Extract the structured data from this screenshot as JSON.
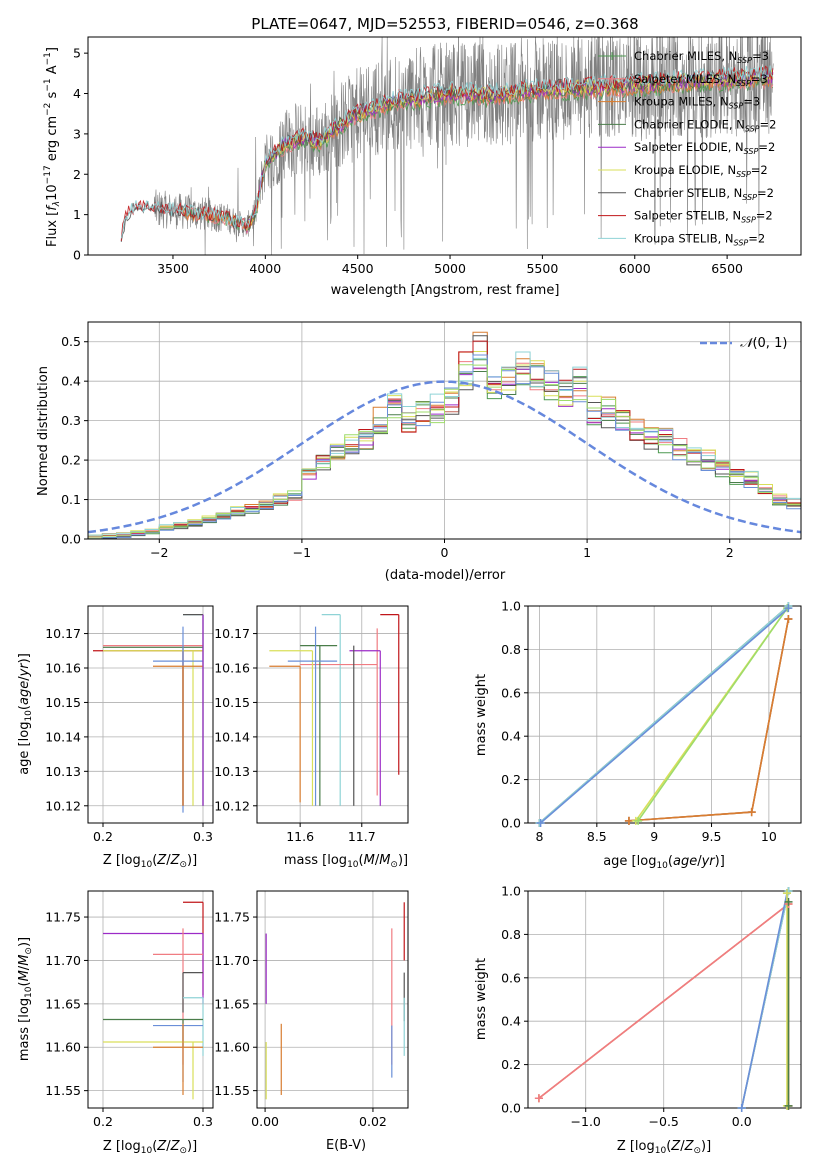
{
  "colors": {
    "Chabrier MILES": "#4d9950",
    "Salpeter MILES": "#f07c82",
    "Kroupa MILES": "#d87d30",
    "Chabrier ELODIE": "#4a7d4a",
    "Salpeter ELODIE": "#9c2bc7",
    "Kroupa ELODIE": "#d9df5a",
    "Chabrier STELIB": "#555555",
    "Salpeter STELIB": "#c0161a",
    "Kroupa STELIB": "#8fd3d6",
    "extra_blue": "#6a8fd8",
    "extra_green": "#9edc6b",
    "data_gray": "#808080",
    "normal_curve": "#6688dd"
  },
  "chart_data": [
    {
      "id": "spectrum",
      "type": "line",
      "title": "PLATE=0647, MJD=52553, FIBERID=0546, z=0.368",
      "xlabel": "wavelength [Angstrom, rest frame]",
      "ylabel": "Flux [f_λ 10^-17 erg cm^-2 s^-1 A^-1]",
      "xlim": [
        3040,
        6900
      ],
      "ylim": [
        0,
        5.4
      ],
      "xticks": [
        3500,
        4000,
        4500,
        5000,
        5500,
        6000,
        6500
      ],
      "yticks": [
        0,
        1,
        2,
        3,
        4,
        5
      ],
      "legend_position": "top-right",
      "legend": [
        "Chabrier MILES, N_SSP=3",
        "Salpeter MILES, N_SSP=3",
        "Kroupa MILES, N_SSP=3",
        "Chabrier ELODIE, N_SSP=2",
        "Salpeter ELODIE, N_SSP=2",
        "Kroupa ELODIE, N_SSP=2",
        "Chabrier STELIB, N_SSP=2",
        "Salpeter STELIB, N_SSP=2",
        "Kroupa STELIB, N_SSP=2"
      ],
      "data_range": [
        3220,
        6750
      ],
      "continuum_knots": {
        "x": [
          3220,
          3250,
          3300,
          3400,
          3500,
          3600,
          3700,
          3800,
          3900,
          3950,
          4000,
          4100,
          4200,
          4300,
          4400,
          4500,
          4700,
          5000,
          5200,
          5500,
          5800,
          6000,
          6300,
          6700
        ],
        "y": [
          0.45,
          1.0,
          1.15,
          1.15,
          1.1,
          1.05,
          1.0,
          0.9,
          0.7,
          1.1,
          2.3,
          2.7,
          2.9,
          2.8,
          3.2,
          3.5,
          3.8,
          4.0,
          3.95,
          4.1,
          4.15,
          4.2,
          4.3,
          4.4
        ]
      }
    },
    {
      "id": "residuals",
      "type": "line",
      "xlabel": "(data-model)/error",
      "ylabel": "Normed distribution",
      "xlim": [
        -2.5,
        2.5
      ],
      "ylim": [
        0,
        0.55
      ],
      "xticks": [
        -2,
        -1,
        0,
        1,
        2
      ],
      "yticks": [
        0.0,
        0.1,
        0.2,
        0.3,
        0.4,
        0.5
      ],
      "legend": [
        "𝒩(0,1)"
      ],
      "legend_position": "top-right",
      "bin_edges": [
        -2.5,
        -2.4,
        -2.3,
        -2.2,
        -2.1,
        -2.0,
        -1.9,
        -1.8,
        -1.7,
        -1.6,
        -1.5,
        -1.4,
        -1.3,
        -1.2,
        -1.1,
        -1.0,
        -0.9,
        -0.8,
        -0.7,
        -0.6,
        -0.5,
        -0.4,
        -0.3,
        -0.2,
        -0.1,
        0.0,
        0.1,
        0.2,
        0.3,
        0.4,
        0.5,
        0.6,
        0.7,
        0.8,
        0.9,
        1.0,
        1.1,
        1.2,
        1.3,
        1.4,
        1.5,
        1.6,
        1.7,
        1.8,
        1.9,
        2.0,
        2.1,
        2.2,
        2.3,
        2.4,
        2.5
      ],
      "base_hist": [
        0.005,
        0.008,
        0.01,
        0.015,
        0.02,
        0.03,
        0.035,
        0.04,
        0.05,
        0.06,
        0.07,
        0.075,
        0.085,
        0.1,
        0.11,
        0.17,
        0.2,
        0.22,
        0.24,
        0.25,
        0.3,
        0.33,
        0.3,
        0.32,
        0.33,
        0.35,
        0.43,
        0.47,
        0.4,
        0.4,
        0.44,
        0.42,
        0.4,
        0.37,
        0.39,
        0.33,
        0.32,
        0.3,
        0.27,
        0.26,
        0.25,
        0.23,
        0.21,
        0.2,
        0.18,
        0.16,
        0.15,
        0.12,
        0.1,
        0.09
      ]
    },
    {
      "id": "age_vs_Z",
      "type": "scatter",
      "xlabel": "Z [log10(Z/Z⊙)]",
      "ylabel": "age [log10(age/yr)]",
      "xlim": [
        0.185,
        0.31
      ],
      "ylim": [
        10.115,
        10.178
      ],
      "xticks": [
        0.2,
        0.3
      ],
      "yticks": [
        10.12,
        10.13,
        10.14,
        10.15,
        10.16,
        10.17
      ],
      "points": [
        {
          "model": "Kroupa STELIB",
          "x": 0.3,
          "y": 10.1755,
          "xerr": [
            0.28,
            0.3
          ],
          "yerr": [
            10.12,
            10.1755
          ]
        },
        {
          "model": "Salpeter MILES",
          "x": 0.28,
          "y": 10.1665,
          "xerr": [
            0.2,
            0.3
          ],
          "yerr": [
            10.12,
            10.1665
          ]
        },
        {
          "model": "Chabrier ELODIE",
          "x": 0.28,
          "y": 10.166,
          "xerr": [
            0.2,
            0.3
          ],
          "yerr": [
            10.12,
            10.166
          ]
        },
        {
          "model": "Salpeter STELIB",
          "x": 0.28,
          "y": 10.165,
          "xerr": [
            0.19,
            0.3
          ],
          "yerr": [
            10.12,
            10.165
          ]
        },
        {
          "model": "Kroupa ELODIE",
          "x": 0.29,
          "y": 10.165,
          "xerr": [
            0.2,
            0.3
          ],
          "yerr": [
            10.12,
            10.165
          ]
        },
        {
          "model": "Chabrier STELIB",
          "x": 0.3,
          "y": 10.1755,
          "xerr": [
            0.28,
            0.3
          ],
          "yerr": [
            10.12,
            10.1755
          ]
        },
        {
          "model": "extra_blue",
          "x": 0.28,
          "y": 10.162,
          "xerr": [
            0.25,
            0.3
          ],
          "yerr": [
            10.118,
            10.172
          ]
        },
        {
          "model": "Kroupa MILES",
          "x": 0.28,
          "y": 10.1605,
          "xerr": [
            0.25,
            0.3
          ],
          "yerr": [
            10.12,
            10.1605
          ]
        },
        {
          "model": "Salpeter ELODIE",
          "x": 0.3,
          "y": 10.12,
          "xerr": [
            0.3,
            0.3
          ],
          "yerr": [
            10.12,
            10.1755
          ]
        }
      ]
    },
    {
      "id": "age_vs_mass",
      "type": "scatter",
      "xlabel": "mass [log10(M/M⊙)]",
      "ylabel": "",
      "xlim": [
        11.53,
        11.775
      ],
      "ylim": [
        10.115,
        10.178
      ],
      "xticks": [
        11.6,
        11.7
      ],
      "yticks": [
        10.12,
        10.13,
        10.14,
        10.15,
        10.16,
        10.17
      ],
      "points": [
        {
          "model": "Salpeter STELIB",
          "x": 11.76,
          "y": 10.1755,
          "xerr": [
            11.73,
            11.76
          ],
          "yerr": [
            10.129,
            10.1755
          ]
        },
        {
          "model": "Kroupa STELIB",
          "x": 11.665,
          "y": 10.1755,
          "xerr": [
            11.635,
            11.665
          ],
          "yerr": [
            10.12,
            10.1755
          ]
        },
        {
          "model": "Salpeter MILES",
          "x": 11.725,
          "y": 10.161,
          "xerr": [
            11.6,
            11.725
          ],
          "yerr": [
            10.123,
            10.1715
          ]
        },
        {
          "model": "Chabrier ELODIE",
          "x": 11.632,
          "y": 10.1665,
          "xerr": [
            11.6,
            11.66
          ],
          "yerr": [
            10.12,
            10.1665
          ]
        },
        {
          "model": "Salpeter ELODIE",
          "x": 11.73,
          "y": 10.165,
          "xerr": [
            11.68,
            11.73
          ],
          "yerr": [
            10.12,
            10.165
          ]
        },
        {
          "model": "Kroupa ELODIE",
          "x": 11.62,
          "y": 10.165,
          "xerr": [
            11.55,
            11.62
          ],
          "yerr": [
            10.12,
            10.165
          ]
        },
        {
          "model": "extra_blue",
          "x": 11.625,
          "y": 10.162,
          "xerr": [
            11.58,
            11.66
          ],
          "yerr": [
            10.12,
            10.172
          ]
        },
        {
          "model": "Kroupa MILES",
          "x": 11.6,
          "y": 10.1605,
          "xerr": [
            11.55,
            11.6
          ],
          "yerr": [
            10.121,
            10.1605
          ]
        },
        {
          "model": "Chabrier STELIB",
          "x": 11.687,
          "y": 10.1665,
          "xerr": [
            11.687,
            11.687
          ],
          "yerr": [
            10.12,
            10.1665
          ]
        }
      ]
    },
    {
      "id": "weight_vs_age",
      "type": "line",
      "xlabel": "age [log10(age/yr)]",
      "ylabel": "mass weight",
      "xlim": [
        7.9,
        10.28
      ],
      "ylim": [
        0,
        1.0
      ],
      "xticks": [
        8.0,
        8.5,
        9.0,
        9.5,
        10.0
      ],
      "yticks": [
        0.0,
        0.2,
        0.4,
        0.6,
        0.8,
        1.0
      ],
      "series": [
        {
          "model": "Chabrier MILES",
          "x": [
            8.78,
            9.85,
            10.17
          ],
          "y": [
            0.01,
            0.05,
            0.94
          ]
        },
        {
          "model": "Salpeter MILES",
          "x": [
            8.78,
            9.85,
            10.17
          ],
          "y": [
            0.01,
            0.05,
            0.94
          ]
        },
        {
          "model": "Kroupa MILES",
          "x": [
            8.78,
            9.85,
            10.17
          ],
          "y": [
            0.01,
            0.05,
            0.94
          ]
        },
        {
          "model": "Kroupa ELODIE",
          "x": [
            8.84,
            10.16
          ],
          "y": [
            0.01,
            0.99
          ]
        },
        {
          "model": "extra_green",
          "x": [
            8.86,
            10.16
          ],
          "y": [
            0.01,
            0.99
          ]
        },
        {
          "model": "Chabrier STELIB",
          "x": [
            8.0,
            10.17
          ],
          "y": [
            0.0,
            1.0
          ]
        },
        {
          "model": "Kroupa STELIB",
          "x": [
            8.0,
            10.17
          ],
          "y": [
            0.0,
            1.0
          ]
        },
        {
          "model": "extra_blue",
          "x": [
            8.01,
            10.17
          ],
          "y": [
            0.0,
            0.99
          ]
        }
      ]
    },
    {
      "id": "mass_vs_Z",
      "type": "scatter",
      "xlabel": "Z [log10(Z/Z⊙)]",
      "ylabel": "mass [log10(M/M⊙)]",
      "xlim": [
        0.185,
        0.31
      ],
      "ylim": [
        11.53,
        11.78
      ],
      "xticks": [
        0.2,
        0.3
      ],
      "yticks": [
        11.55,
        11.6,
        11.65,
        11.7,
        11.75
      ],
      "points": [
        {
          "model": "Salpeter STELIB",
          "x": 0.3,
          "y": 11.767,
          "xerr": [
            0.28,
            0.3
          ],
          "yerr": [
            11.66,
            11.767
          ]
        },
        {
          "model": "Salpeter ELODIE",
          "x": 0.3,
          "y": 11.731,
          "xerr": [
            0.2,
            0.3
          ],
          "yerr": [
            11.65,
            11.731
          ]
        },
        {
          "model": "Salpeter MILES",
          "x": 0.28,
          "y": 11.707,
          "xerr": [
            0.25,
            0.3
          ],
          "yerr": [
            11.58,
            11.737
          ]
        },
        {
          "model": "Chabrier STELIB",
          "x": 0.28,
          "y": 11.686,
          "xerr": [
            0.28,
            0.3
          ],
          "yerr": [
            11.64,
            11.686
          ]
        },
        {
          "model": "Kroupa STELIB",
          "x": 0.3,
          "y": 11.657,
          "xerr": [
            0.28,
            0.3
          ],
          "yerr": [
            11.59,
            11.657
          ]
        },
        {
          "model": "Chabrier ELODIE",
          "x": 0.28,
          "y": 11.632,
          "xerr": [
            0.2,
            0.3
          ],
          "yerr": [
            11.6,
            11.632
          ]
        },
        {
          "model": "extra_blue",
          "x": 0.28,
          "y": 11.625,
          "xerr": [
            0.25,
            0.3
          ],
          "yerr": [
            11.56,
            11.625
          ]
        },
        {
          "model": "Kroupa ELODIE",
          "x": 0.29,
          "y": 11.606,
          "xerr": [
            0.2,
            0.3
          ],
          "yerr": [
            11.54,
            11.606
          ]
        },
        {
          "model": "Kroupa MILES",
          "x": 0.28,
          "y": 11.6,
          "xerr": [
            0.25,
            0.3
          ],
          "yerr": [
            11.545,
            11.627
          ]
        }
      ]
    },
    {
      "id": "mass_vs_EBV",
      "type": "scatter",
      "xlabel": "E(B-V)",
      "ylabel": "",
      "xlim": [
        -0.0015,
        0.0265
      ],
      "ylim": [
        11.53,
        11.78
      ],
      "xticks": [
        0.0,
        0.02
      ],
      "xticklabels": [
        "0.00",
        "0.02"
      ],
      "yticks": [
        11.55,
        11.6,
        11.65,
        11.7,
        11.75
      ],
      "points": [
        {
          "model": "Salpeter STELIB",
          "x": 0.0258,
          "yerr": [
            11.7,
            11.767
          ]
        },
        {
          "model": "Chabrier STELIB",
          "x": 0.0258,
          "yerr": [
            11.63,
            11.686
          ]
        },
        {
          "model": "Kroupa STELIB",
          "x": 0.0258,
          "yerr": [
            11.59,
            11.657
          ]
        },
        {
          "model": "Salpeter MILES",
          "x": 0.0235,
          "yerr": [
            11.58,
            11.737
          ]
        },
        {
          "model": "extra_blue",
          "x": 0.0235,
          "yerr": [
            11.565,
            11.625
          ]
        },
        {
          "model": "Salpeter ELODIE",
          "x": 0.0002,
          "yerr": [
            11.65,
            11.731
          ]
        },
        {
          "model": "Kroupa ELODIE",
          "x": 0.0002,
          "yerr": [
            11.54,
            11.606
          ]
        },
        {
          "model": "Kroupa MILES",
          "x": 0.003,
          "yerr": [
            11.545,
            11.627
          ]
        }
      ]
    },
    {
      "id": "weight_vs_Z",
      "type": "line",
      "xlabel": "Z [log10(Z/Z⊙)]",
      "ylabel": "mass weight",
      "xlim": [
        -1.37,
        0.38
      ],
      "ylim": [
        0,
        1.0
      ],
      "xticks": [
        -1.0,
        -0.5,
        0.0
      ],
      "xticklabels": [
        "−1.0",
        "−0.5",
        "0.0"
      ],
      "yticks": [
        0.0,
        0.2,
        0.4,
        0.6,
        0.8,
        1.0
      ],
      "series": [
        {
          "model": "Kroupa MILES",
          "x": [
            -1.3,
            0.3,
            0.3
          ],
          "y": [
            0.045,
            0.94,
            0.01
          ]
        },
        {
          "model": "Salpeter MILES",
          "x": [
            -1.3,
            0.3,
            0.3
          ],
          "y": [
            0.045,
            0.94,
            0.01
          ]
        },
        {
          "model": "Chabrier STELIB",
          "x": [
            0.0,
            0.3
          ],
          "y": [
            0.0,
            1.0
          ]
        },
        {
          "model": "Kroupa STELIB",
          "x": [
            0.0,
            0.3
          ],
          "y": [
            0.0,
            1.0
          ]
        },
        {
          "model": "extra_blue",
          "x": [
            0.0,
            0.29
          ],
          "y": [
            0.0,
            0.99
          ]
        },
        {
          "model": "Kroupa ELODIE",
          "x": [
            0.29,
            0.29
          ],
          "y": [
            0.01,
            0.99
          ]
        },
        {
          "model": "Chabrier ELODIE",
          "x": [
            0.3,
            0.3
          ],
          "y": [
            0.01,
            0.95
          ]
        }
      ]
    }
  ]
}
